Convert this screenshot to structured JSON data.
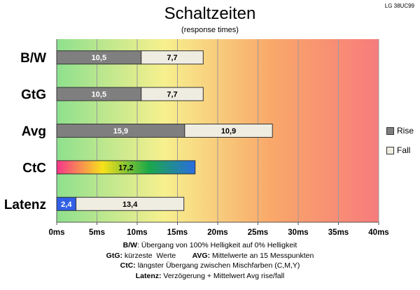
{
  "header": {
    "title": "Schaltzeiten",
    "subtitle": "(response times)",
    "model": "LG 38UC99"
  },
  "chart_data": {
    "type": "bar",
    "orientation": "horizontal",
    "stacked": true,
    "categories": [
      "B/W",
      "GtG",
      "Avg",
      "CtC",
      "Latenz"
    ],
    "series": [
      {
        "name": "Rise",
        "values": [
          10.5,
          10.5,
          15.9,
          17.2,
          2.4
        ],
        "labels": [
          "10,5",
          "10,5",
          "15,9",
          "17,2",
          "2,4"
        ]
      },
      {
        "name": "Fall",
        "values": [
          7.7,
          7.7,
          10.9,
          null,
          13.4
        ],
        "labels": [
          "7,7",
          "7,7",
          "10,9",
          "",
          "13,4"
        ]
      }
    ],
    "xlim": [
      0,
      40
    ],
    "xticks": [
      "0ms",
      "5ms",
      "10ms",
      "15ms",
      "20ms",
      "25ms",
      "30ms",
      "35ms",
      "40ms"
    ],
    "grid": true,
    "legend": "right",
    "background_gradient": [
      "#8ee08e",
      "#f7f08e",
      "#f9a86a",
      "#f77c7c"
    ],
    "colors": {
      "rise": "#7f7f7f",
      "fall": "#efece1",
      "ctc_gradient": [
        "#f7348c",
        "#f7e21a",
        "#1aa84a",
        "#2a6de0"
      ],
      "latenz_rise": "#3160e6"
    }
  },
  "legend": {
    "rise_label": "Rise",
    "fall_label": "Fall"
  },
  "notes": [
    {
      "key": "B/W",
      "text": ":  Übergang von 100% Helligkeit auf 0% Helligkeit"
    },
    {
      "key": "GtG:",
      "text": " kürzeste  Werte        ",
      "key2": "AVG:",
      "text2": " Mittelwerte  an 15 Messpunkten"
    },
    {
      "key": "CtC:",
      "text": " längster Übergang  zwischen Mischfarben (C,M,Y)"
    },
    {
      "key": "Latenz:",
      "text": " Verzögerung  + Mittelwert  Avg rise/fall"
    }
  ]
}
